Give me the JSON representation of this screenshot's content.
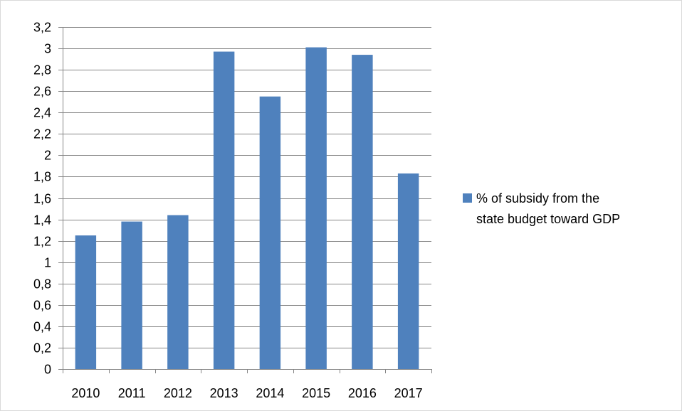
{
  "chart_data": {
    "type": "bar",
    "title": "",
    "xlabel": "",
    "ylabel": "",
    "categories": [
      "2010",
      "2011",
      "2012",
      "2013",
      "2014",
      "2015",
      "2016",
      "2017"
    ],
    "series": [
      {
        "name": "% of subsidy from the state budget toward GDP",
        "legend_lines": [
          "% of subsidy from the",
          "state budget toward GDP"
        ],
        "color": "#4F81BD",
        "values": [
          1.25,
          1.38,
          1.44,
          2.97,
          2.55,
          3.01,
          2.94,
          1.83
        ]
      }
    ],
    "ylim": [
      0,
      3.2
    ],
    "yticks": [
      "0",
      "0,2",
      "0,4",
      "0,6",
      "0,8",
      "1",
      "1,2",
      "1,4",
      "1,6",
      "1,8",
      "2",
      "2,2",
      "2,4",
      "2,6",
      "2,8",
      "3",
      "3,2"
    ],
    "grid": true,
    "legend_position": "right"
  }
}
